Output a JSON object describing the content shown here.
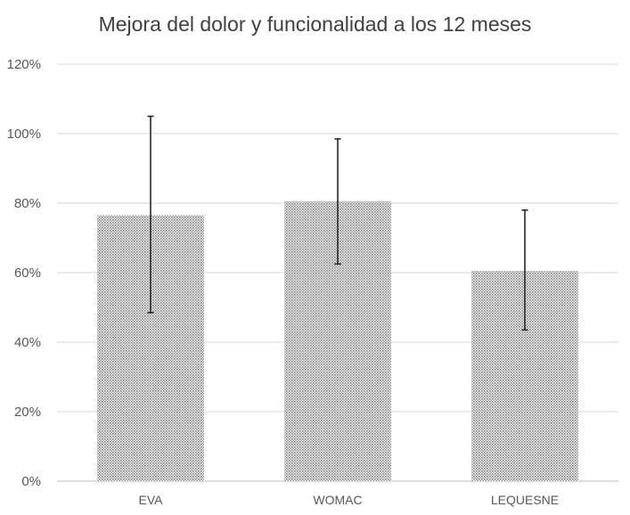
{
  "chart_data": {
    "type": "bar",
    "title": "Mejora del dolor y funcionalidad a los 12 meses",
    "xlabel": "",
    "ylabel": "",
    "categories": [
      "EVA",
      "WOMAC",
      "LEQUESNE"
    ],
    "series": [
      {
        "values": [
          76.5,
          80.5,
          60.5
        ],
        "error_lower": [
          48.5,
          62.5,
          43.5
        ],
        "error_upper": [
          105,
          98.5,
          78
        ]
      }
    ],
    "ylim": [
      0,
      120
    ],
    "yticks": [
      0,
      20,
      40,
      60,
      80,
      100,
      120
    ],
    "ytick_labels": [
      "0%",
      "20%",
      "40%",
      "60%",
      "80%",
      "100%",
      "120%"
    ],
    "grid": true,
    "bar_fill": "dotted gray pattern",
    "colors": {
      "bar_dot": "#7f7f7f",
      "error_bar": "#262626",
      "grid": "#d9d9d9",
      "axis": "#bfbfbf"
    }
  }
}
